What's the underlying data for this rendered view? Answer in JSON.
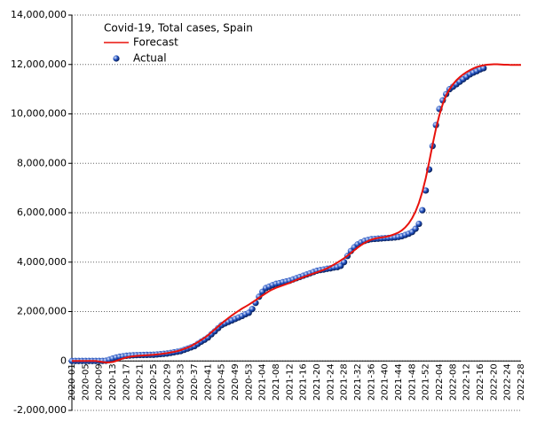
{
  "chart_data": {
    "type": "line",
    "title": "Covid-19, Total cases, Spain",
    "categories": [
      "2020-01",
      null,
      null,
      null,
      "2020-05",
      null,
      null,
      null,
      "2020-09",
      null,
      null,
      null,
      "2020-13",
      null,
      null,
      null,
      "2020-17",
      null,
      null,
      null,
      "2020-21",
      null,
      null,
      null,
      "2020-25",
      null,
      null,
      null,
      "2020-29",
      null,
      null,
      null,
      "2020-33",
      null,
      null,
      null,
      "2020-37",
      null,
      null,
      null,
      "2020-41",
      null,
      null,
      null,
      "2020-45",
      null,
      null,
      null,
      "2020-49",
      null,
      null,
      null,
      "2020-53",
      null,
      null,
      null,
      "2021-04",
      null,
      null,
      null,
      "2021-08",
      null,
      null,
      null,
      "2021-12",
      null,
      null,
      null,
      "2021-16",
      null,
      null,
      null,
      "2021-20",
      null,
      null,
      null,
      "2021-24",
      null,
      null,
      null,
      "2021-28",
      null,
      null,
      null,
      "2021-32",
      null,
      null,
      null,
      "2021-36",
      null,
      null,
      null,
      "2021-40",
      null,
      null,
      null,
      "2021-44",
      null,
      null,
      null,
      "2021-48",
      null,
      null,
      null,
      "2021-52",
      null,
      null,
      null,
      "2022-04",
      null,
      null,
      null,
      "2022-08",
      null,
      null,
      null,
      "2022-12",
      null,
      null,
      null,
      "2022-16",
      null,
      null,
      null,
      "2022-20",
      null,
      null,
      null,
      "2022-24",
      null,
      null,
      null,
      "2022-28"
    ],
    "series": [
      {
        "name": "Forecast",
        "color": "#e8120c",
        "mode": "line",
        "values": [
          0,
          0,
          0,
          0,
          0,
          0,
          0,
          0,
          -20000,
          -40000,
          -60000,
          -60000,
          -40000,
          0,
          50000,
          100000,
          140000,
          170000,
          190000,
          205000,
          215000,
          225000,
          235000,
          242000,
          250000,
          265000,
          280000,
          300000,
          320000,
          345000,
          370000,
          400000,
          440000,
          490000,
          540000,
          600000,
          680000,
          760000,
          850000,
          940000,
          1040000,
          1160000,
          1280000,
          1400000,
          1520000,
          1630000,
          1740000,
          1840000,
          1940000,
          2030000,
          2120000,
          2200000,
          2280000,
          2370000,
          2460000,
          2560000,
          2650000,
          2740000,
          2830000,
          2900000,
          2960000,
          3010000,
          3060000,
          3110000,
          3160000,
          3220000,
          3280000,
          3340000,
          3390000,
          3440000,
          3490000,
          3540000,
          3590000,
          3640000,
          3690000,
          3750000,
          3820000,
          3900000,
          3980000,
          4070000,
          4160000,
          4260000,
          4370000,
          4480000,
          4590000,
          4690000,
          4780000,
          4850000,
          4910000,
          4950000,
          4980000,
          5000000,
          5020000,
          5050000,
          5090000,
          5140000,
          5200000,
          5290000,
          5410000,
          5570000,
          5780000,
          6050000,
          6400000,
          6850000,
          7400000,
          8050000,
          8750000,
          9400000,
          9950000,
          10400000,
          10750000,
          11000000,
          11200000,
          11360000,
          11490000,
          11600000,
          11690000,
          11770000,
          11840000,
          11900000,
          11940000,
          11970000,
          11990000,
          12000000,
          12010000,
          12010000,
          12000000,
          11990000,
          11990000,
          11980000,
          11980000,
          11980000,
          11980000
        ]
      },
      {
        "name": "Actual",
        "color": "#1f4fbf",
        "mode": "markers",
        "values": [
          0,
          0,
          0,
          0,
          0,
          0,
          0,
          0,
          0,
          2000,
          10000,
          50000,
          100000,
          140000,
          170000,
          190000,
          210000,
          220000,
          230000,
          235000,
          240000,
          243000,
          246000,
          248000,
          250000,
          262000,
          275000,
          288000,
          300000,
          325000,
          350000,
          375000,
          400000,
          450000,
          500000,
          550000,
          600000,
          690000,
          780000,
          860000,
          950000,
          1080000,
          1200000,
          1330000,
          1450000,
          1520000,
          1580000,
          1640000,
          1700000,
          1760000,
          1820000,
          1890000,
          1950000,
          2100000,
          2350000,
          2600000,
          2800000,
          2950000,
          3010000,
          3070000,
          3120000,
          3150000,
          3190000,
          3220000,
          3250000,
          3300000,
          3350000,
          3400000,
          3450000,
          3500000,
          3550000,
          3600000,
          3650000,
          3680000,
          3700000,
          3730000,
          3750000,
          3780000,
          3800000,
          3850000,
          4000000,
          4250000,
          4450000,
          4600000,
          4720000,
          4800000,
          4860000,
          4900000,
          4930000,
          4940000,
          4950000,
          4960000,
          4970000,
          4980000,
          4990000,
          5000000,
          5020000,
          5050000,
          5100000,
          5150000,
          5220000,
          5350000,
          5550000,
          6100000,
          6900000,
          7750000,
          8700000,
          9550000,
          10200000,
          10550000,
          10800000,
          11000000,
          11100000,
          11200000,
          11300000,
          11400000,
          11500000,
          11600000,
          11670000,
          11730000,
          11800000,
          11850000,
          null,
          null,
          null,
          null,
          null,
          null,
          null,
          null,
          null,
          null,
          null
        ]
      }
    ],
    "ylim": [
      -2000000,
      14000000
    ],
    "yticks": [
      {
        "value": -2000000,
        "label": "-2,000,000"
      },
      0,
      {
        "value": 2000000,
        "label": "2,000,000"
      },
      {
        "value": 4000000,
        "label": "4,000,000"
      },
      {
        "value": 6000000,
        "label": "6,000,000"
      },
      {
        "value": 8000000,
        "label": "8,000,000"
      },
      {
        "value": 10000000,
        "label": "10,000,000"
      },
      {
        "value": 12000000,
        "label": "12,000,000"
      },
      {
        "value": 14000000,
        "label": "14,000,000"
      }
    ],
    "grid": true
  }
}
